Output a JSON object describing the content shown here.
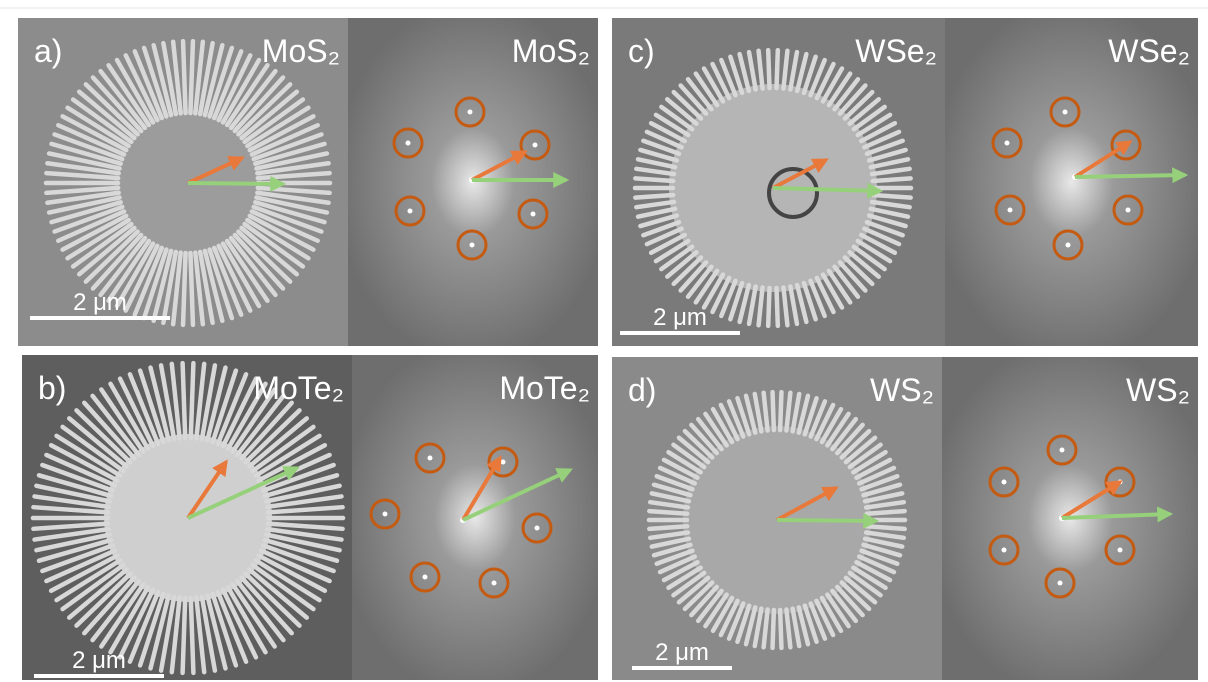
{
  "panels": [
    {
      "label": "a)",
      "image_title": "MoS₂",
      "fft_title": "MoS₂",
      "scale_bar": "2 μm"
    },
    {
      "label": "b)",
      "image_title": "MoTe₂",
      "fft_title": "MoTe₂",
      "scale_bar": "2 μm"
    },
    {
      "label": "c)",
      "image_title": "WSe₂",
      "fft_title": "WSe₂",
      "scale_bar": "2 μm"
    },
    {
      "label": "d)",
      "image_title": "WS₂",
      "fft_title": "WS₂",
      "scale_bar": "2 μm"
    }
  ]
}
